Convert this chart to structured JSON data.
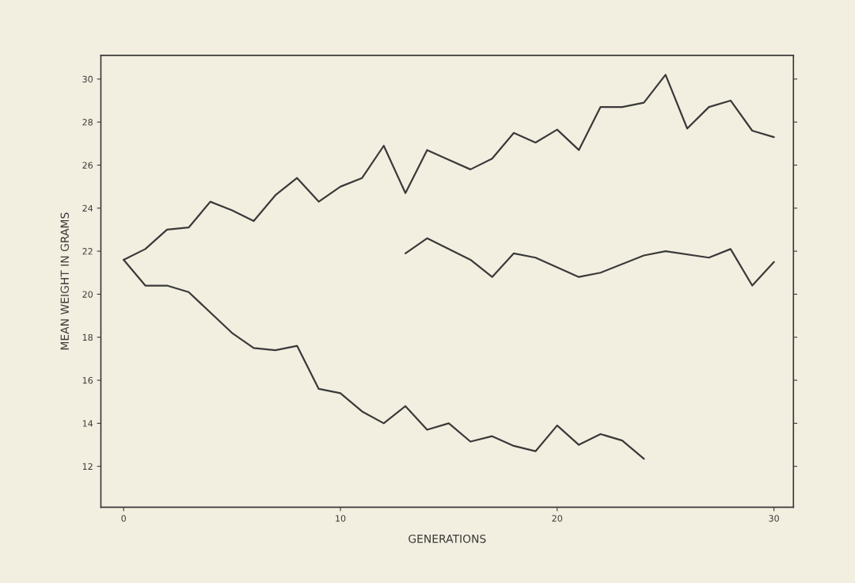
{
  "chart_data": {
    "type": "line",
    "xlabel": "GENERATIONS",
    "ylabel": "MEAN WEIGHT IN GRAMS",
    "xlim": [
      -1.05,
      30.9
    ],
    "xticks": [
      0,
      10,
      20,
      30
    ],
    "ylim": [
      10.1,
      31.1
    ],
    "yticks": [
      12,
      14,
      16,
      18,
      20,
      22,
      24,
      26,
      28,
      30
    ],
    "grid": false,
    "marker": "none",
    "line_style": "solid",
    "series": [
      {
        "color": "#3a3a3a",
        "x": [
          0,
          1,
          2,
          3,
          4,
          5,
          6,
          7,
          8,
          9,
          10,
          11,
          12,
          13,
          14,
          15,
          16,
          17,
          18,
          19,
          20,
          21,
          22,
          23,
          24,
          25,
          26,
          27,
          28,
          29,
          30
        ],
        "values": [
          21.6,
          22.1,
          23.0,
          23.1,
          24.3,
          23.9,
          23.4,
          24.6,
          25.4,
          24.3,
          25.0,
          25.4,
          26.9,
          24.7,
          26.7,
          26.25,
          25.8,
          26.3,
          27.5,
          27.05,
          27.65,
          26.7,
          28.7,
          28.7,
          28.9,
          30.2,
          27.7,
          28.7,
          29.0,
          27.6,
          27.3
        ]
      },
      {
        "color": "#3a3a3a",
        "x": [
          13,
          14,
          16,
          17,
          18,
          19,
          21,
          22,
          24,
          25,
          27,
          28,
          29,
          30
        ],
        "values": [
          21.9,
          22.6,
          21.6,
          20.8,
          21.9,
          21.7,
          20.8,
          21.0,
          21.8,
          22.0,
          21.7,
          22.1,
          20.4,
          21.5
        ]
      },
      {
        "color": "#3a3a3a",
        "x": [
          0,
          1,
          2,
          3,
          4,
          5,
          6,
          7,
          8,
          9,
          10,
          11,
          12,
          13,
          14,
          15,
          16,
          17,
          18,
          19,
          20,
          21,
          22,
          23,
          24
        ],
        "values": [
          21.6,
          20.4,
          20.4,
          20.1,
          19.15,
          18.2,
          17.5,
          17.4,
          17.6,
          15.6,
          15.4,
          14.55,
          14.0,
          14.8,
          13.7,
          14.0,
          13.15,
          13.4,
          12.95,
          12.7,
          13.9,
          13.0,
          13.5,
          13.2,
          12.35
        ]
      }
    ]
  }
}
